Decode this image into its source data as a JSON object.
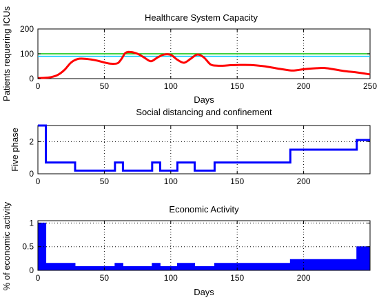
{
  "colors": {
    "red": "#ff0000",
    "blue": "#0000ff",
    "green": "#00c000",
    "cyan": "#00c8ff"
  },
  "chart_data": [
    {
      "type": "line",
      "title": "Healthcare System Capacity",
      "xlabel": "Days",
      "ylabel": "Patients requering ICUs",
      "xlim": [
        0,
        250
      ],
      "ylim": [
        0,
        200
      ],
      "xticks": [
        0,
        50,
        100,
        150,
        200,
        250
      ],
      "yticks": [
        0,
        100,
        200
      ],
      "grid": true,
      "capacity_lines": [
        100,
        90
      ],
      "series": [
        {
          "x": [
            0,
            5,
            10,
            15,
            20,
            25,
            30,
            35,
            40,
            45,
            50,
            55,
            60,
            63,
            66,
            70,
            75,
            80,
            85,
            90,
            95,
            100,
            105,
            110,
            115,
            120,
            125,
            130,
            135,
            140,
            145,
            150,
            160,
            170,
            180,
            190,
            195,
            200,
            210,
            215,
            220,
            230,
            240,
            250
          ],
          "y": [
            2,
            3,
            6,
            15,
            35,
            65,
            79,
            80,
            77,
            72,
            65,
            60,
            62,
            80,
            104,
            107,
            100,
            85,
            70,
            85,
            97,
            96,
            76,
            64,
            80,
            97,
            85,
            57,
            52,
            52,
            54,
            55,
            55,
            50,
            41,
            33,
            34,
            38,
            42,
            43,
            40,
            31,
            25,
            17
          ]
        }
      ]
    },
    {
      "type": "line",
      "title": "Social distancing and confinement",
      "xlabel": "",
      "ylabel": "Five phase",
      "xlim": [
        0,
        250
      ],
      "ylim": [
        0,
        3
      ],
      "xticks": [
        0,
        50,
        100,
        150,
        200
      ],
      "yticks": [
        0,
        2
      ],
      "grid": true,
      "series": [
        {
          "x": [
            0,
            6,
            6,
            28,
            28,
            58,
            58,
            64,
            64,
            86,
            86,
            92,
            92,
            105,
            105,
            118,
            118,
            133,
            133,
            190,
            190,
            240,
            240,
            250
          ],
          "y": [
            3,
            3,
            0.7,
            0.7,
            0.2,
            0.2,
            0.7,
            0.7,
            0.2,
            0.2,
            0.7,
            0.7,
            0.2,
            0.2,
            0.7,
            0.7,
            0.2,
            0.2,
            0.7,
            0.7,
            1.5,
            1.5,
            2.1,
            2.1
          ]
        }
      ]
    },
    {
      "type": "bar",
      "title": "Economic Activity",
      "xlabel": "Days",
      "ylabel": "% of economic activity",
      "xlim": [
        0,
        250
      ],
      "ylim": [
        0,
        1.05
      ],
      "xticks": [
        0,
        50,
        100,
        150,
        200
      ],
      "yticks": [
        0,
        0.5,
        1
      ],
      "ytick_labels": [
        "0",
        "0.5",
        "1"
      ],
      "grid": true,
      "series": [
        {
          "x": [
            0,
            6,
            6,
            28,
            28,
            58,
            58,
            64,
            64,
            86,
            86,
            92,
            92,
            105,
            105,
            118,
            118,
            133,
            133,
            190,
            190,
            240,
            240,
            250
          ],
          "y": [
            1,
            1,
            0.15,
            0.15,
            0.08,
            0.08,
            0.15,
            0.15,
            0.08,
            0.08,
            0.15,
            0.15,
            0.08,
            0.08,
            0.15,
            0.15,
            0.08,
            0.08,
            0.15,
            0.15,
            0.23,
            0.23,
            0.5,
            0.5
          ]
        }
      ]
    }
  ]
}
